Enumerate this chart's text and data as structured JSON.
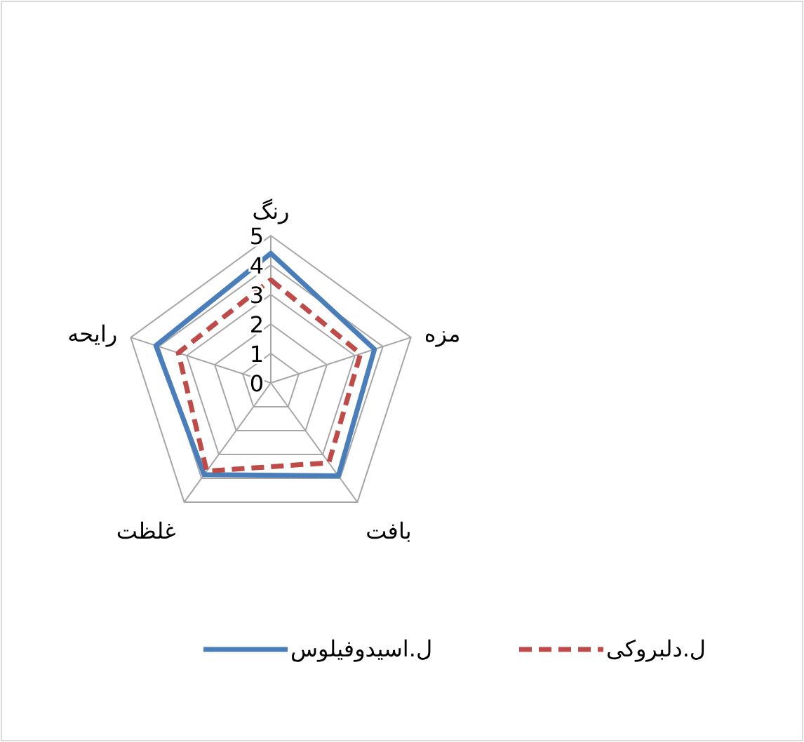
{
  "chart_data": {
    "type": "radar",
    "categories": [
      "رنگ",
      "مزه",
      "بافت",
      "غلظت",
      "رایحه"
    ],
    "series": [
      {
        "name": "ل.اسیدوفیلوس",
        "color": "#4a7ebb",
        "values": [
          4.4,
          3.7,
          3.9,
          3.85,
          4.1
        ]
      },
      {
        "name": "ل.دلبروکی",
        "color": "#be4b48",
        "values": [
          3.5,
          3.2,
          3.35,
          3.7,
          3.3
        ],
        "line_style": "dashed"
      }
    ],
    "ylim": [
      0,
      5
    ],
    "yticks": [
      0,
      1,
      2,
      3,
      4,
      5
    ],
    "grid": true,
    "legend": "bottom"
  }
}
